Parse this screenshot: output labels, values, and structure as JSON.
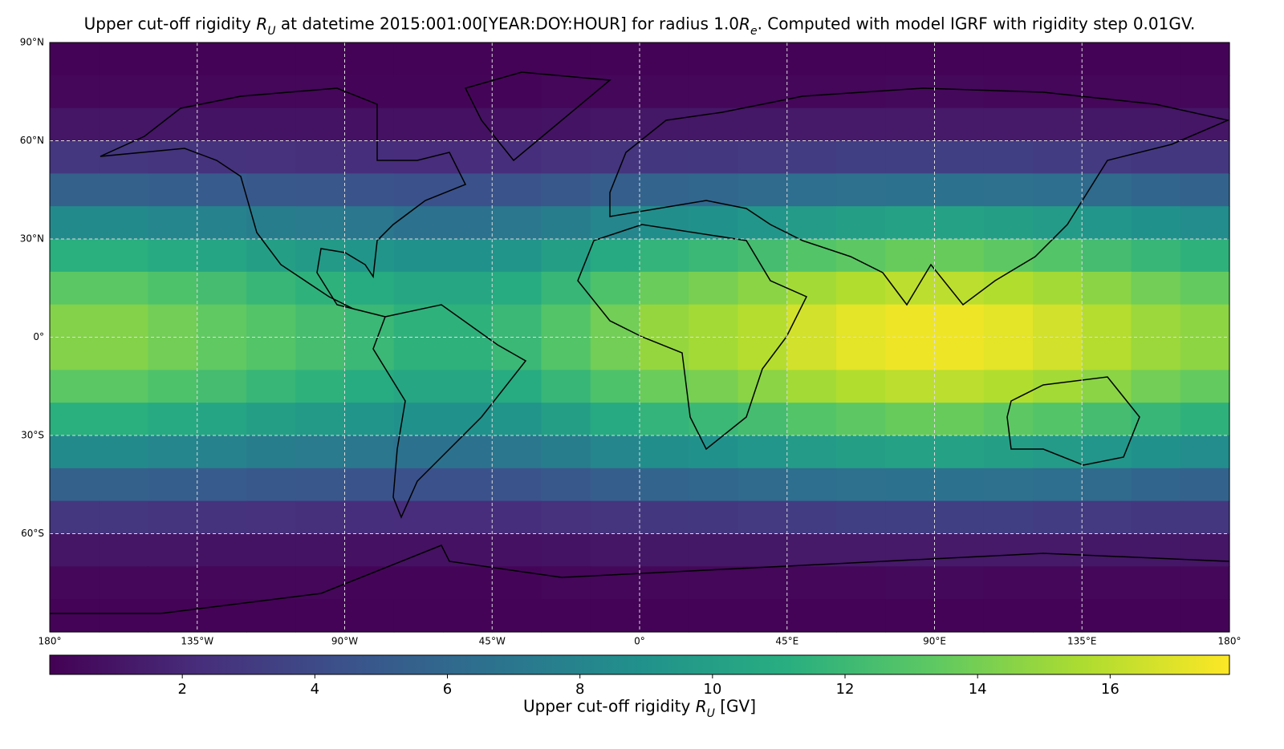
{
  "chart_data": {
    "type": "heatmap",
    "title": "Upper cut-off rigidity $R_U$ at datetime 2015:001:00[YEAR:DOY:HOUR] for radius 1.0$R_e$. Computed with model IGRF with rigidity step 0.01GV.",
    "colorbar_label": "Upper cut-off rigidity $R_U$ [GV]",
    "xlim": [
      -180,
      180
    ],
    "ylim": [
      -90,
      90
    ],
    "xbins": [
      -180,
      -165,
      -150,
      -135,
      -120,
      -105,
      -90,
      -75,
      -60,
      -45,
      -30,
      -15,
      0,
      15,
      30,
      45,
      60,
      75,
      90,
      105,
      120,
      135,
      150,
      165,
      180
    ],
    "ybins": [
      90,
      80,
      70,
      60,
      50,
      40,
      30,
      20,
      10,
      0,
      -10,
      -20,
      -30,
      -40,
      -50,
      -60,
      -70,
      -80,
      -90
    ],
    "xticks": [
      {
        "value": -180,
        "label": "180°"
      },
      {
        "value": -135,
        "label": "135°W"
      },
      {
        "value": -90,
        "label": "90°W"
      },
      {
        "value": -45,
        "label": "45°W"
      },
      {
        "value": 0,
        "label": "0°"
      },
      {
        "value": 45,
        "label": "45°E"
      },
      {
        "value": 90,
        "label": "90°E"
      },
      {
        "value": 135,
        "label": "135°E"
      },
      {
        "value": 180,
        "label": "180°"
      }
    ],
    "yticks": [
      {
        "value": 90,
        "label": "90°N"
      },
      {
        "value": 60,
        "label": "60°N"
      },
      {
        "value": 30,
        "label": "30°N"
      },
      {
        "value": 0,
        "label": "0°"
      },
      {
        "value": -30,
        "label": "30°S"
      },
      {
        "value": -60,
        "label": "60°S"
      }
    ],
    "grid": true,
    "clim": [
      0,
      17.8
    ],
    "cticks": [
      2,
      4,
      6,
      8,
      10,
      12,
      14,
      16
    ],
    "colormap": [
      "#440154",
      "#472d7b",
      "#3b528b",
      "#2c728e",
      "#21918c",
      "#28ae80",
      "#5ec962",
      "#addc30",
      "#fde725"
    ],
    "values": [
      [
        0.1,
        0.1,
        0.1,
        0.1,
        0.1,
        0.1,
        0.1,
        0.1,
        0.1,
        0.1,
        0.1,
        0.1,
        0.1,
        0.1,
        0.1,
        0.1,
        0.1,
        0.1,
        0.1,
        0.1,
        0.1,
        0.1,
        0.1,
        0.1
      ],
      [
        0.3,
        0.3,
        0.3,
        0.3,
        0.3,
        0.3,
        0.2,
        0.2,
        0.2,
        0.2,
        0.3,
        0.3,
        0.3,
        0.3,
        0.3,
        0.3,
        0.3,
        0.4,
        0.4,
        0.3,
        0.3,
        0.3,
        0.3,
        0.3
      ],
      [
        1.0,
        1.0,
        1.0,
        0.9,
        0.9,
        0.9,
        0.8,
        0.8,
        0.8,
        0.8,
        0.9,
        1.0,
        1.1,
        1.1,
        1.1,
        1.2,
        1.2,
        1.2,
        1.2,
        1.2,
        1.2,
        1.1,
        1.1,
        1.0
      ],
      [
        2.8,
        2.8,
        2.7,
        2.6,
        2.5,
        2.4,
        2.3,
        2.2,
        2.2,
        2.3,
        2.5,
        2.7,
        2.9,
        2.9,
        3.0,
        3.2,
        3.3,
        3.3,
        3.3,
        3.3,
        3.2,
        3.0,
        2.9,
        2.8
      ],
      [
        5.5,
        5.5,
        5.3,
        5.1,
        4.9,
        4.8,
        4.6,
        4.4,
        4.4,
        4.6,
        4.9,
        5.3,
        5.7,
        5.9,
        6.1,
        6.4,
        6.6,
        6.7,
        6.7,
        6.6,
        6.4,
        6.1,
        5.8,
        5.6
      ],
      [
        8.4,
        8.4,
        8.1,
        7.8,
        7.5,
        7.3,
        7.0,
        6.7,
        6.7,
        7.0,
        7.5,
        8.1,
        8.7,
        9.0,
        9.3,
        9.7,
        10.0,
        10.2,
        10.2,
        10.0,
        9.7,
        9.3,
        8.9,
        8.6
      ],
      [
        11.2,
        11.2,
        10.8,
        10.4,
        10.0,
        9.6,
        9.2,
        8.9,
        8.9,
        9.2,
        10.0,
        10.8,
        11.6,
        11.9,
        12.3,
        12.9,
        13.3,
        13.6,
        13.6,
        13.3,
        12.9,
        12.3,
        11.8,
        11.4
      ],
      [
        13.2,
        13.2,
        12.7,
        12.3,
        11.8,
        11.4,
        10.9,
        10.5,
        10.5,
        10.9,
        11.8,
        12.7,
        13.7,
        14.1,
        14.6,
        15.3,
        15.7,
        16.0,
        16.0,
        15.7,
        15.3,
        14.6,
        13.9,
        13.5
      ],
      [
        14.4,
        14.4,
        13.9,
        13.4,
        12.9,
        12.4,
        11.9,
        11.4,
        11.4,
        11.9,
        12.9,
        13.9,
        14.9,
        15.3,
        15.8,
        16.6,
        17.1,
        17.4,
        17.4,
        17.1,
        16.6,
        15.8,
        15.1,
        14.7
      ],
      [
        14.4,
        14.4,
        13.9,
        13.4,
        12.9,
        12.4,
        11.9,
        11.4,
        11.4,
        11.9,
        12.9,
        13.9,
        14.9,
        15.3,
        15.8,
        16.6,
        17.1,
        17.4,
        17.4,
        17.1,
        16.6,
        15.8,
        15.1,
        14.7
      ],
      [
        13.2,
        13.2,
        12.7,
        12.3,
        11.8,
        11.4,
        10.9,
        10.5,
        10.5,
        10.9,
        11.8,
        12.7,
        13.7,
        14.1,
        14.6,
        15.3,
        15.7,
        16.0,
        16.0,
        15.7,
        15.3,
        14.6,
        13.9,
        13.5
      ],
      [
        11.2,
        11.2,
        10.8,
        10.4,
        10.0,
        9.6,
        9.2,
        8.9,
        8.9,
        9.2,
        10.0,
        10.8,
        11.6,
        11.9,
        12.3,
        12.9,
        13.3,
        13.6,
        13.6,
        13.3,
        12.9,
        12.3,
        11.8,
        11.4
      ],
      [
        8.4,
        8.4,
        8.1,
        7.8,
        7.5,
        7.3,
        7.0,
        6.7,
        6.7,
        7.0,
        7.5,
        8.1,
        8.7,
        9.0,
        9.3,
        9.7,
        10.0,
        10.2,
        10.2,
        10.0,
        9.7,
        9.3,
        8.9,
        8.6
      ],
      [
        5.5,
        5.5,
        5.3,
        5.1,
        4.9,
        4.8,
        4.6,
        4.4,
        4.4,
        4.6,
        4.9,
        5.3,
        5.7,
        5.9,
        6.1,
        6.4,
        6.6,
        6.7,
        6.7,
        6.6,
        6.4,
        6.1,
        5.8,
        5.6
      ],
      [
        2.8,
        2.8,
        2.7,
        2.6,
        2.5,
        2.4,
        2.3,
        2.2,
        2.2,
        2.3,
        2.5,
        2.7,
        2.9,
        2.9,
        3.0,
        3.2,
        3.3,
        3.3,
        3.3,
        3.3,
        3.2,
        3.0,
        2.9,
        2.8
      ],
      [
        1.0,
        1.0,
        1.0,
        0.9,
        0.9,
        0.9,
        0.8,
        0.8,
        0.8,
        0.8,
        0.9,
        1.0,
        1.1,
        1.1,
        1.1,
        1.2,
        1.2,
        1.2,
        1.2,
        1.2,
        1.2,
        1.1,
        1.1,
        1.0
      ],
      [
        0.3,
        0.3,
        0.3,
        0.3,
        0.3,
        0.3,
        0.2,
        0.2,
        0.2,
        0.2,
        0.3,
        0.3,
        0.3,
        0.3,
        0.3,
        0.3,
        0.3,
        0.4,
        0.4,
        0.3,
        0.3,
        0.3,
        0.3,
        0.3
      ],
      [
        0.1,
        0.1,
        0.1,
        0.1,
        0.1,
        0.1,
        0.1,
        0.1,
        0.1,
        0.1,
        0.1,
        0.1,
        0.1,
        0.1,
        0.1,
        0.1,
        0.1,
        0.1,
        0.1,
        0.1,
        0.1,
        0.1,
        0.1,
        0.1
      ]
    ]
  }
}
